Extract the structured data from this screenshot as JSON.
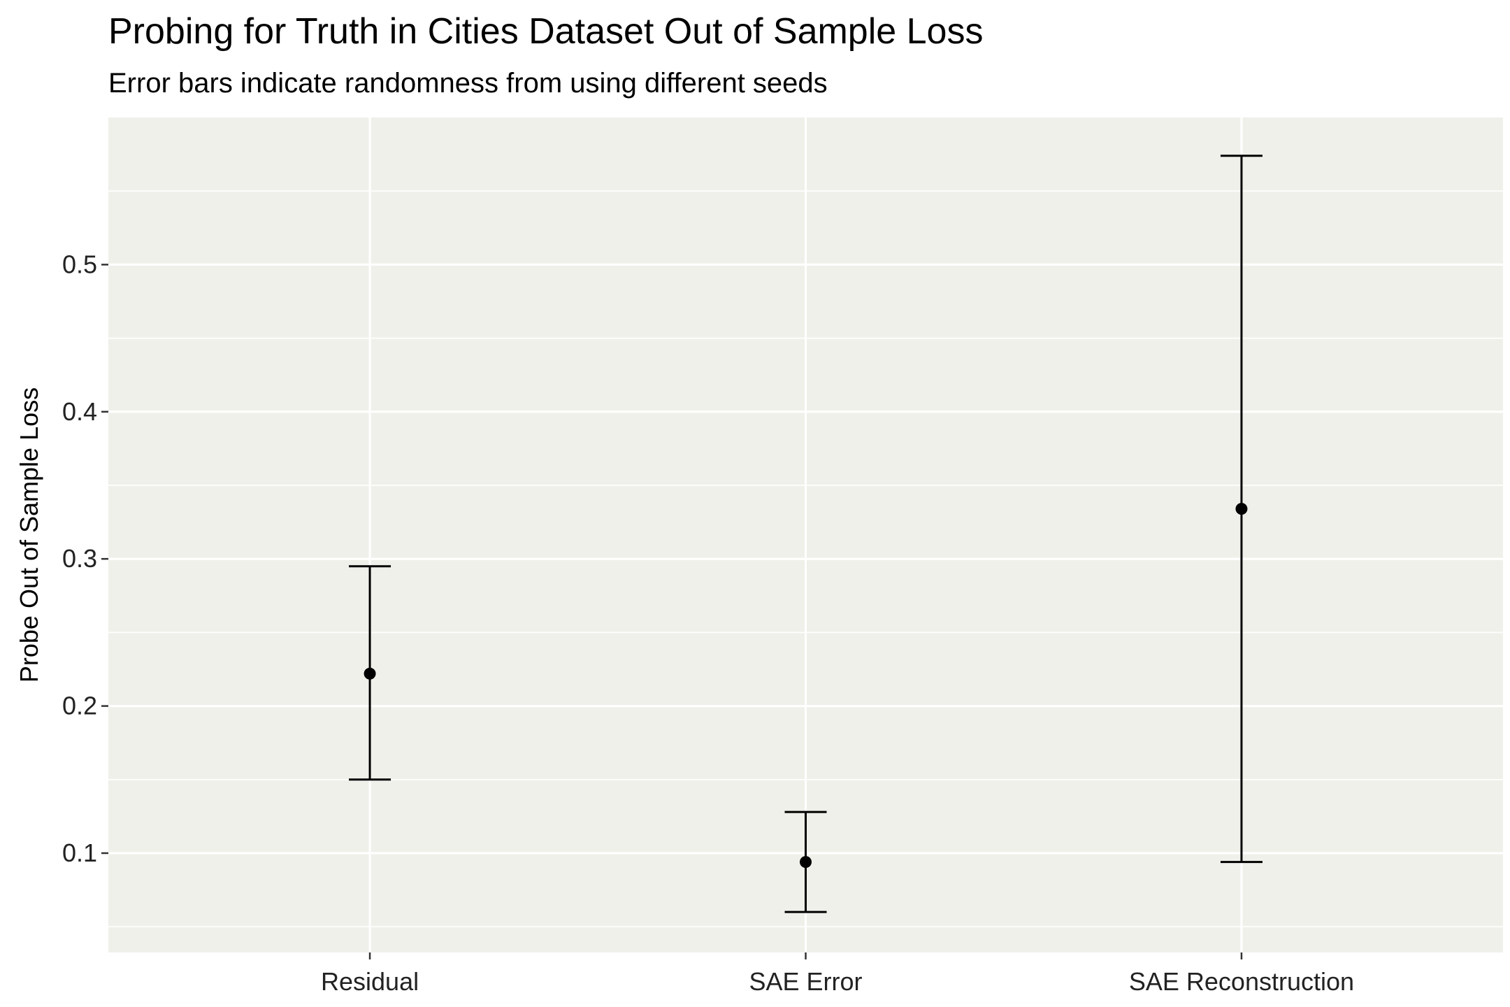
{
  "chart_data": {
    "type": "scatter",
    "title": "Probing for Truth in Cities Dataset Out of Sample Loss",
    "subtitle": "Error bars indicate randomness from using different seeds",
    "xlabel": "",
    "ylabel": "Probe Out of Sample Loss",
    "categories": [
      "Residual",
      "SAE Error",
      "SAE Reconstruction"
    ],
    "values": [
      0.222,
      0.094,
      0.334
    ],
    "lower": [
      0.15,
      0.06,
      0.094
    ],
    "upper": [
      0.295,
      0.128,
      0.574
    ],
    "yticks": [
      0.1,
      0.2,
      0.3,
      0.4,
      0.5
    ],
    "ytick_labels": [
      "0.1",
      "0.2",
      "0.3",
      "0.4",
      "0.5"
    ],
    "ylim": [
      0.0325,
      0.6
    ],
    "grid": true,
    "legend": "none",
    "colors": {
      "panel_background": "#f0f0eb",
      "grid": "#ffffff",
      "marks": "#000000"
    }
  }
}
